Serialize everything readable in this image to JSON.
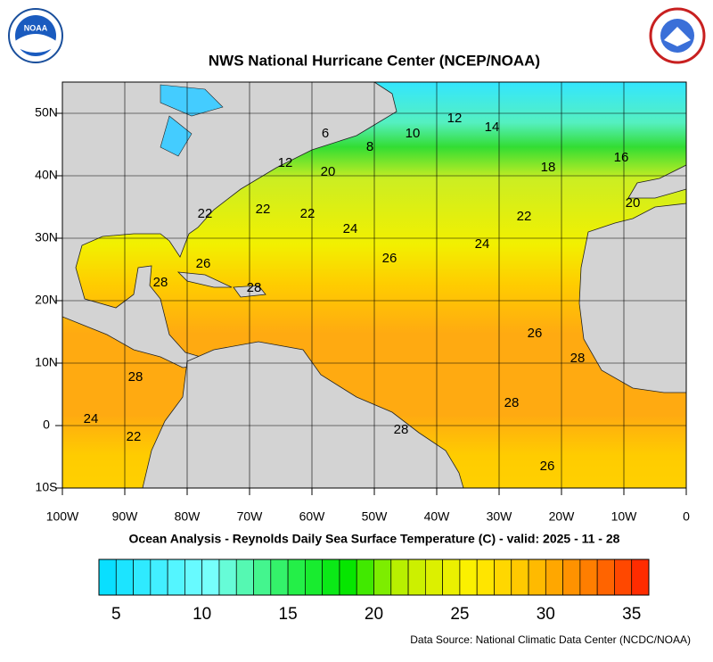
{
  "header": {
    "title": "NWS National Hurricane Center (NCEP/NOAA)",
    "logo_text": "NOAA"
  },
  "map": {
    "lonlim": [
      -100,
      0
    ],
    "latlim": [
      -10,
      55
    ],
    "lonticks": [
      {
        "value": -100,
        "label": "100W"
      },
      {
        "value": -90,
        "label": "90W"
      },
      {
        "value": -80,
        "label": "80W"
      },
      {
        "value": -70,
        "label": "70W"
      },
      {
        "value": -60,
        "label": "60W"
      },
      {
        "value": -50,
        "label": "50W"
      },
      {
        "value": -40,
        "label": "40W"
      },
      {
        "value": -30,
        "label": "30W"
      },
      {
        "value": -20,
        "label": "20W"
      },
      {
        "value": -10,
        "label": "10W"
      },
      0
    ],
    "latticks": [
      {
        "value": -10,
        "label": "10S"
      },
      0,
      {
        "value": 10,
        "label": "10N"
      },
      {
        "value": 20,
        "label": "20N"
      },
      {
        "value": 30,
        "label": "30N"
      },
      {
        "value": 40,
        "label": "40N"
      },
      {
        "value": 50,
        "label": "50N"
      }
    ],
    "contour_labels": [
      6,
      8,
      10,
      12,
      14,
      16,
      18,
      20,
      20,
      12,
      22,
      22,
      22,
      22,
      24,
      24,
      26,
      26,
      26,
      28,
      28,
      28,
      28,
      28,
      28,
      26,
      24,
      22
    ]
  },
  "subtitle": "Ocean Analysis - Reynolds Daily Sea Surface Temperature (C) - valid: 2025 - 11 - 28",
  "colorbar": {
    "range": [
      4,
      36
    ],
    "ticks": [
      5,
      10,
      15,
      20,
      25,
      30,
      35
    ]
  },
  "source": "Data Source: National Climatic Data Center (NCDC/NOAA)"
}
